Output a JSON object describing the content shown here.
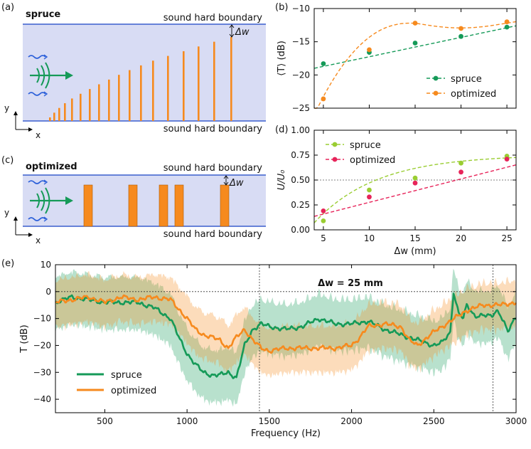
{
  "panels": {
    "a": {
      "tag": "(a)",
      "title": "spruce",
      "top_boundary": "sound hard boundary",
      "bottom_boundary": "sound hard boundary",
      "dw_label": "Δw",
      "axis_y": "y",
      "axis_x": "x"
    },
    "c": {
      "tag": "(c)",
      "title": "optimized",
      "top_boundary": "sound hard boundary",
      "bottom_boundary": "sound hard boundary",
      "dw_label": "Δw",
      "axis_y": "y",
      "axis_x": "x"
    },
    "b": {
      "tag": "(b)"
    },
    "d": {
      "tag": "(d)"
    },
    "e": {
      "tag": "(e)",
      "annotation": "Δw = 25 mm"
    }
  },
  "colors": {
    "spruce": "#159a58",
    "optimized": "#f68a1e",
    "spruce_d": "#9acd32",
    "optimized_d": "#e7245a",
    "domain": "#d8dcf4",
    "boundary": "#3a5fcd",
    "rod": "#f68a1e"
  },
  "chart_data": [
    {
      "id": "b",
      "type": "line",
      "x": [
        5,
        10,
        15,
        20,
        25
      ],
      "series": [
        {
          "name": "spruce",
          "values": [
            -18.3,
            -16.6,
            -15.2,
            -14.2,
            -12.8
          ]
        },
        {
          "name": "optimized",
          "values": [
            -23.6,
            -16.2,
            -12.2,
            -13.0,
            -12.0
          ]
        }
      ],
      "ylabel": "⟨T⟩ (dB)",
      "xlim": [
        4,
        26
      ],
      "ylim": [
        -25,
        -10
      ],
      "yticks": [
        -25,
        -20,
        -15,
        -10
      ],
      "legend": "lower-right"
    },
    {
      "id": "d",
      "type": "line",
      "x": [
        5,
        10,
        15,
        20,
        25
      ],
      "series": [
        {
          "name": "spruce",
          "values": [
            0.09,
            0.4,
            0.52,
            0.67,
            0.74
          ]
        },
        {
          "name": "optimized",
          "values": [
            0.19,
            0.33,
            0.47,
            0.58,
            0.71
          ]
        }
      ],
      "ylabel": "U/U₀",
      "xlabel": "Δw (mm)",
      "xlim": [
        4,
        26
      ],
      "ylim": [
        0,
        1
      ],
      "xticks": [
        5,
        10,
        15,
        20,
        25
      ],
      "yticks": [
        0.0,
        0.25,
        0.5,
        0.75,
        1.0
      ],
      "hline": 0.5,
      "legend": "top-left"
    },
    {
      "id": "e",
      "type": "line",
      "xlabel": "Frequency (Hz)",
      "ylabel": "T (dB)",
      "xlim": [
        200,
        3000
      ],
      "ylim": [
        -45,
        10
      ],
      "xticks": [
        500,
        1000,
        1500,
        2000,
        2500,
        3000
      ],
      "yticks": [
        -40,
        -30,
        -20,
        -10,
        0,
        10
      ],
      "vlines": [
        1440,
        2860
      ],
      "hline": 0,
      "legend": "lower-left",
      "series": [
        {
          "name": "spruce",
          "f": [
            200,
            300,
            400,
            500,
            600,
            700,
            800,
            900,
            950,
            1000,
            1050,
            1100,
            1150,
            1200,
            1250,
            1300,
            1350,
            1400,
            1450,
            1500,
            1600,
            1700,
            1800,
            1900,
            2000,
            2100,
            2200,
            2300,
            2400,
            2500,
            2550,
            2600,
            2620,
            2650,
            2680,
            2700,
            2750,
            2800,
            2850,
            2880,
            2900,
            2950,
            3000
          ],
          "values": [
            -4,
            -2,
            -3,
            -4,
            -4,
            -4,
            -6,
            -10,
            -17,
            -23,
            -27,
            -30,
            -31,
            -31,
            -30,
            -32,
            -20,
            -14,
            -12,
            -13,
            -14,
            -13,
            -10,
            -12,
            -12,
            -11,
            -14,
            -16,
            -18,
            -20,
            -19,
            -15,
            0,
            -8,
            -10,
            -5,
            -9,
            -9,
            -9,
            -7,
            -8,
            -15,
            -9
          ]
        },
        {
          "name": "optimized",
          "f": [
            200,
            300,
            400,
            500,
            600,
            700,
            800,
            900,
            1000,
            1050,
            1100,
            1150,
            1200,
            1250,
            1300,
            1350,
            1400,
            1450,
            1500,
            1600,
            1700,
            1800,
            1900,
            2000,
            2050,
            2100,
            2200,
            2300,
            2350,
            2400,
            2500,
            2600,
            2700,
            2800,
            2900,
            3000
          ],
          "values": [
            -4,
            -3,
            -2,
            -4,
            -2,
            -3,
            -2,
            -3,
            -10,
            -14,
            -16,
            -17,
            -18,
            -21,
            -17,
            -14,
            -18,
            -21,
            -22,
            -21,
            -21,
            -21,
            -21,
            -20,
            -17,
            -13,
            -12,
            -13,
            -18,
            -20,
            -15,
            -11,
            -7,
            -5,
            -5,
            -4
          ]
        }
      ]
    }
  ]
}
